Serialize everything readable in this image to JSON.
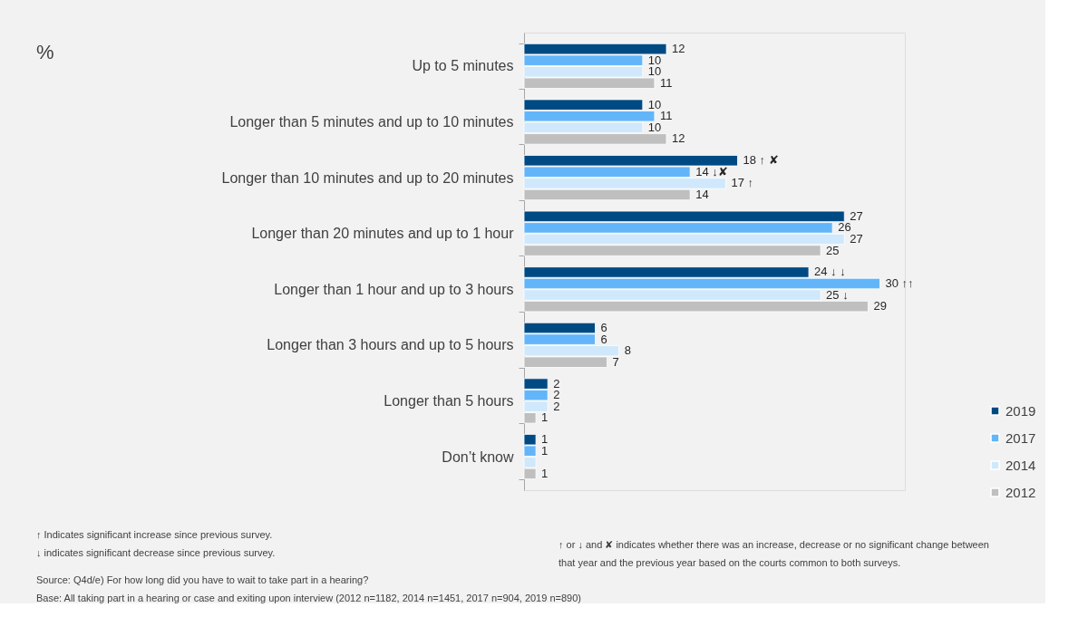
{
  "chart_data": {
    "type": "bar",
    "orientation": "horizontal",
    "title": "%",
    "categories": [
      "Up to 5 minutes",
      "Longer than 5 minutes and up to 10 minutes",
      "Longer than 10 minutes and up to 20 minutes",
      "Longer than 20 minutes and up to 1 hour",
      "Longer than 1 hour and up to 3 hours",
      "Longer than 3 hours and up to 5 hours",
      "Longer than 5 hours",
      "Don’t know"
    ],
    "series": [
      {
        "name": "2019",
        "color": "#004a84",
        "values": [
          12,
          10,
          18,
          27,
          24,
          6,
          2,
          1
        ],
        "value_labels": [
          "12",
          "10",
          "18 ↑ ✘",
          "27",
          "24 ↓ ↓",
          "6",
          "2",
          "1"
        ]
      },
      {
        "name": "2017",
        "color": "#63b5fa",
        "values": [
          10,
          11,
          14,
          26,
          30,
          6,
          2,
          1
        ],
        "value_labels": [
          "10",
          "11",
          "14 ↓✘",
          "26",
          "30 ↑↑",
          "6",
          "2",
          "1"
        ]
      },
      {
        "name": "2014",
        "color": "#d0e8fb",
        "values": [
          10,
          10,
          17,
          27,
          25,
          8,
          2,
          1
        ],
        "value_labels": [
          "10",
          "10",
          "17 ↑",
          "27",
          "25 ↓",
          "8",
          "2",
          null
        ]
      },
      {
        "name": "2012",
        "color": "#bfbfbf",
        "values": [
          11,
          12,
          14,
          25,
          29,
          7,
          1,
          1
        ],
        "value_labels": [
          "11",
          "12",
          "14",
          "25",
          "29",
          "7",
          "1",
          "1"
        ]
      }
    ],
    "legend": "bottom right",
    "grid": false,
    "annotations": [
      "↑ Indicates significant increase since previous survey.",
      "↓ indicates significant decrease since previous survey.",
      "↑ or ↓ and ✘ indicates whether there was an increase, decrease or no significant change between that year and the previous year based on the courts common to both surveys.",
      "Source: Q4d/e) For how long did you have to wait to take part in a hearing?",
      "Base: All taking part in a hearing or case and exiting upon interview (2012 n=1182, 2014 n=1451, 2017 n=904, 2019 n=890)"
    ]
  }
}
